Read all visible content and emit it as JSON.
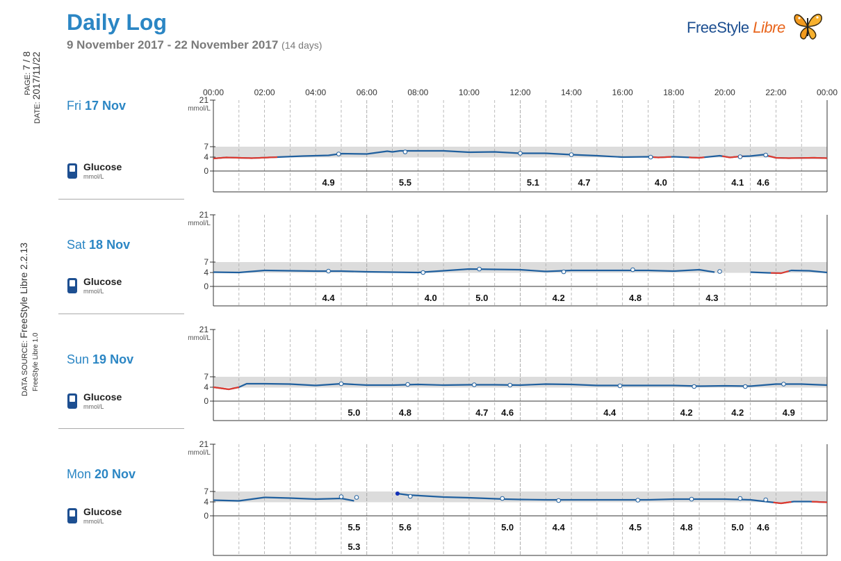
{
  "header": {
    "title": "Daily Log",
    "date_range": "9 November 2017 - 22 November 2017",
    "days": "(14 days)"
  },
  "logo": {
    "text_main": "FreeStyle",
    "text_accent": "Libre",
    "icon": "butterfly-icon"
  },
  "side": {
    "page_label": "PAGE:",
    "page_value": "7 / 8",
    "date_label": "DATE:",
    "date_value": "2017/11/22",
    "source_label": "DATA SOURCE:",
    "source_value": "FreeStyle Libre 2.2.13",
    "source_sub": "FreeStyle Libre 1.0"
  },
  "glucose_label": "Glucose",
  "glucose_unit": "mmol/L",
  "colors": {
    "line": "#1f5f9e",
    "low": "#e23a2e",
    "target_band": "#dcdcdc",
    "accent": "#2b86c4"
  },
  "chart_data": {
    "type": "line",
    "x_ticks": [
      "00:00",
      "02:00",
      "04:00",
      "06:00",
      "08:00",
      "10:00",
      "12:00",
      "14:00",
      "16:00",
      "18:00",
      "20:00",
      "22:00",
      "00:00"
    ],
    "x_range_hours": [
      0,
      24
    ],
    "y_ticks": [
      "21",
      "7",
      "4",
      "0"
    ],
    "y_unit": "mmol/L",
    "ylim": [
      0,
      21
    ],
    "target_range": [
      3.9,
      7
    ],
    "days": [
      {
        "dow": "Fri",
        "date": "17 Nov",
        "curve": [
          [
            0,
            3.6
          ],
          [
            0.5,
            3.9
          ],
          [
            1.5,
            3.7
          ],
          [
            2.5,
            4.0
          ],
          [
            3.5,
            4.3
          ],
          [
            4.5,
            4.5
          ],
          [
            5,
            5.0
          ],
          [
            6,
            4.9
          ],
          [
            6.8,
            5.7
          ],
          [
            7,
            5.5
          ],
          [
            7.3,
            5.8
          ],
          [
            8,
            5.8
          ],
          [
            9,
            5.8
          ],
          [
            10,
            5.4
          ],
          [
            11,
            5.5
          ],
          [
            12,
            5.1
          ],
          [
            13,
            5.1
          ],
          [
            14,
            4.7
          ],
          [
            15,
            4.4
          ],
          [
            16,
            4.0
          ],
          [
            17,
            4.1
          ],
          [
            17.4,
            3.9
          ],
          [
            18,
            4.1
          ],
          [
            19,
            3.8
          ],
          [
            19.8,
            4.4
          ],
          [
            20.2,
            3.9
          ],
          [
            20.6,
            4.2
          ],
          [
            21,
            4.3
          ],
          [
            21.5,
            4.7
          ],
          [
            22,
            3.8
          ],
          [
            22.5,
            3.7
          ],
          [
            23.5,
            3.8
          ],
          [
            24,
            3.7
          ]
        ],
        "low_segments": [
          [
            0,
            2.5
          ],
          [
            17.2,
            17.9
          ],
          [
            18.6,
            19.2
          ],
          [
            19.9,
            20.7
          ],
          [
            21.7,
            24
          ]
        ],
        "markers": [
          {
            "t": 4.9,
            "v": 4.9
          },
          {
            "t": 7.5,
            "v": 5.5
          },
          {
            "t": 12.0,
            "v": 5.1
          },
          {
            "t": 14.0,
            "v": 4.7
          },
          {
            "t": 17.1,
            "v": 4.0
          },
          {
            "t": 20.6,
            "v": 4.1
          },
          {
            "t": 21.6,
            "v": 4.6
          }
        ],
        "values": [
          {
            "t": 4.5,
            "v": "4.9",
            "row": 1
          },
          {
            "t": 7.5,
            "v": "5.5",
            "row": 1
          },
          {
            "t": 12.5,
            "v": "5.1",
            "row": 1
          },
          {
            "t": 14.5,
            "v": "4.7",
            "row": 1
          },
          {
            "t": 17.5,
            "v": "4.0",
            "row": 1
          },
          {
            "t": 20.5,
            "v": "4.1",
            "row": 1
          },
          {
            "t": 21.5,
            "v": "4.6",
            "row": 1
          }
        ]
      },
      {
        "dow": "Sat",
        "date": "18 Nov",
        "curve": [
          [
            0,
            4.1
          ],
          [
            1,
            4.0
          ],
          [
            2,
            4.6
          ],
          [
            3,
            4.5
          ],
          [
            4,
            4.4
          ],
          [
            5,
            4.4
          ],
          [
            6,
            4.2
          ],
          [
            7,
            4.1
          ],
          [
            8,
            4.0
          ],
          [
            9,
            4.5
          ],
          [
            10,
            5.0
          ],
          [
            11,
            4.9
          ],
          [
            12,
            4.8
          ],
          [
            13,
            4.3
          ],
          [
            14,
            4.6
          ],
          [
            15,
            4.6
          ],
          [
            16,
            4.6
          ],
          [
            17,
            4.6
          ],
          [
            18,
            4.4
          ],
          [
            19,
            4.8
          ],
          [
            19.6,
            4.1
          ]
        ],
        "curve2": [
          [
            21.0,
            4.1
          ],
          [
            21.7,
            3.9
          ],
          [
            22.2,
            3.8
          ],
          [
            22.6,
            4.6
          ],
          [
            23.3,
            4.5
          ],
          [
            24,
            4.0
          ]
        ],
        "low_segments": [
          [
            21.8,
            22.5
          ]
        ],
        "markers": [
          {
            "t": 4.5,
            "v": 4.4
          },
          {
            "t": 8.2,
            "v": 4.0
          },
          {
            "t": 10.4,
            "v": 5.0
          },
          {
            "t": 13.7,
            "v": 4.2
          },
          {
            "t": 16.4,
            "v": 4.8
          },
          {
            "t": 19.8,
            "v": 4.3
          }
        ],
        "values": [
          {
            "t": 4.5,
            "v": "4.4",
            "row": 1
          },
          {
            "t": 8.5,
            "v": "4.0",
            "row": 1
          },
          {
            "t": 10.5,
            "v": "5.0",
            "row": 1
          },
          {
            "t": 13.5,
            "v": "4.2",
            "row": 1
          },
          {
            "t": 16.5,
            "v": "4.8",
            "row": 1
          },
          {
            "t": 19.5,
            "v": "4.3",
            "row": 1
          }
        ]
      },
      {
        "dow": "Sun",
        "date": "19 Nov",
        "curve": [
          [
            0,
            4.0
          ],
          [
            0.6,
            3.4
          ],
          [
            1.0,
            4.0
          ],
          [
            1.3,
            5.0
          ],
          [
            2,
            5.0
          ],
          [
            3,
            4.9
          ],
          [
            4,
            4.5
          ],
          [
            5,
            5.0
          ],
          [
            6,
            4.6
          ],
          [
            7,
            4.6
          ],
          [
            8,
            4.8
          ],
          [
            9,
            4.6
          ],
          [
            10,
            4.7
          ],
          [
            11,
            4.7
          ],
          [
            12,
            4.6
          ],
          [
            13,
            4.9
          ],
          [
            14,
            4.8
          ],
          [
            15,
            4.5
          ],
          [
            16,
            4.5
          ],
          [
            17,
            4.5
          ],
          [
            18,
            4.5
          ],
          [
            19,
            4.3
          ],
          [
            20,
            4.4
          ],
          [
            21,
            4.3
          ],
          [
            22,
            4.9
          ],
          [
            23,
            4.9
          ],
          [
            24,
            4.6
          ]
        ],
        "low_segments": [
          [
            0,
            1.0
          ]
        ],
        "markers": [
          {
            "t": 5.0,
            "v": 5.0
          },
          {
            "t": 7.6,
            "v": 4.8
          },
          {
            "t": 10.2,
            "v": 4.7
          },
          {
            "t": 11.6,
            "v": 4.6
          },
          {
            "t": 15.9,
            "v": 4.4
          },
          {
            "t": 18.8,
            "v": 4.2
          },
          {
            "t": 20.8,
            "v": 4.2
          },
          {
            "t": 22.3,
            "v": 4.9
          }
        ],
        "values": [
          {
            "t": 5.5,
            "v": "5.0",
            "row": 1
          },
          {
            "t": 7.5,
            "v": "4.8",
            "row": 1
          },
          {
            "t": 10.5,
            "v": "4.7",
            "row": 1
          },
          {
            "t": 11.5,
            "v": "4.6",
            "row": 1
          },
          {
            "t": 15.5,
            "v": "4.4",
            "row": 1
          },
          {
            "t": 18.5,
            "v": "4.2",
            "row": 1
          },
          {
            "t": 20.5,
            "v": "4.2",
            "row": 1
          },
          {
            "t": 22.5,
            "v": "4.9",
            "row": 1
          }
        ]
      },
      {
        "dow": "Mon",
        "date": "20 Nov",
        "curve": [
          [
            0,
            4.5
          ],
          [
            1,
            4.3
          ],
          [
            2,
            5.3
          ],
          [
            3,
            5.1
          ],
          [
            4,
            4.8
          ],
          [
            5,
            5.0
          ],
          [
            5.5,
            4.3
          ]
        ],
        "curve2": [
          [
            7.2,
            6.4
          ],
          [
            7.6,
            6.0
          ],
          [
            9,
            5.4
          ],
          [
            10,
            5.2
          ],
          [
            11.4,
            4.8
          ],
          [
            12,
            4.7
          ],
          [
            13,
            4.6
          ],
          [
            14,
            4.6
          ],
          [
            15,
            4.6
          ],
          [
            16,
            4.6
          ],
          [
            17,
            4.6
          ],
          [
            18,
            4.8
          ],
          [
            19,
            4.8
          ],
          [
            20,
            4.8
          ],
          [
            21,
            4.6
          ],
          [
            21.6,
            4.1
          ],
          [
            22.2,
            3.6
          ],
          [
            22.7,
            4.1
          ],
          [
            23.3,
            4.1
          ],
          [
            24,
            3.9
          ]
        ],
        "low_segments": [
          [
            21.9,
            22.6
          ],
          [
            23.4,
            24
          ]
        ],
        "markers": [
          {
            "t": 5.0,
            "v": 5.5
          },
          {
            "t": 5.6,
            "v": 5.3
          },
          {
            "t": 7.7,
            "v": 5.6
          },
          {
            "t": 11.3,
            "v": 5.0
          },
          {
            "t": 13.5,
            "v": 4.4
          },
          {
            "t": 16.6,
            "v": 4.5
          },
          {
            "t": 18.7,
            "v": 4.8
          },
          {
            "t": 20.6,
            "v": 5.0
          },
          {
            "t": 21.6,
            "v": 4.6
          }
        ],
        "filled_marker": {
          "t": 7.2,
          "v": 6.4
        },
        "values": [
          {
            "t": 5.5,
            "v": "5.5",
            "row": 1
          },
          {
            "t": 5.5,
            "v": "5.3",
            "row": 2
          },
          {
            "t": 7.5,
            "v": "5.6",
            "row": 1
          },
          {
            "t": 11.5,
            "v": "5.0",
            "row": 1
          },
          {
            "t": 13.5,
            "v": "4.4",
            "row": 1
          },
          {
            "t": 16.5,
            "v": "4.5",
            "row": 1
          },
          {
            "t": 18.5,
            "v": "4.8",
            "row": 1
          },
          {
            "t": 20.5,
            "v": "5.0",
            "row": 1
          },
          {
            "t": 21.5,
            "v": "4.6",
            "row": 1
          }
        ]
      }
    ]
  }
}
